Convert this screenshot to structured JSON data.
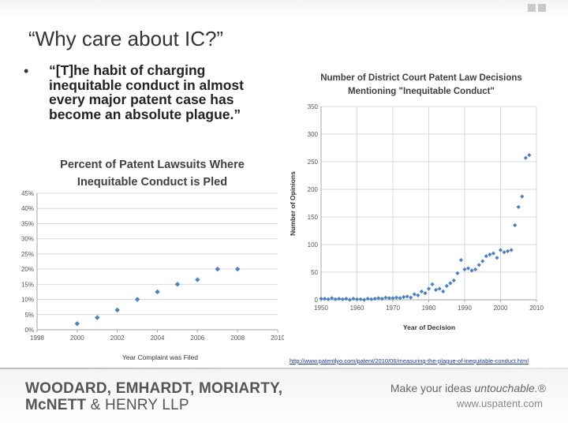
{
  "slide": {
    "title": "“Why care about IC?”",
    "bullet": "“[T]he habit of charging inequitable conduct in almost every major patent case has become an absolute plague.”",
    "bullet_marker": "•",
    "source_url": "http://www.patentlyo.com/patent/2010/06/measuring-the-plague-of-inequitable-conduct.html",
    "firm_line1": "WOODARD, EMHARDT, MORIARTY,",
    "firm_line2_a": "McNETT",
    "firm_line2_b": " & HENRY LLP",
    "tagline_a": "Make your ideas ",
    "tagline_b": "untouchable.®",
    "website": "www.uspatent.com",
    "colors": {
      "marker": "#4f81bd",
      "grid": "#d9d9d9",
      "accent": "#555555"
    }
  },
  "chart_data": [
    {
      "type": "scatter",
      "title": [
        "Percent of Patent Lawsuits Where",
        "Inequitable Conduct is Pled"
      ],
      "xlabel": "Year Complaint was Filed",
      "ylabel": "",
      "xlim": [
        1998,
        2010
      ],
      "ylim": [
        0,
        45
      ],
      "xticks": [
        1998,
        2000,
        2002,
        2004,
        2006,
        2008,
        2010
      ],
      "xtick_labels": [
        "1998",
        "2000",
        "2002",
        "2004",
        "2006",
        "2008",
        "2010"
      ],
      "yticks": [
        0,
        5,
        10,
        15,
        20,
        25,
        30,
        35,
        40,
        45
      ],
      "ytick_labels": [
        "0%",
        "5%",
        "10%",
        "15%",
        "20%",
        "25%",
        "30%",
        "35%",
        "40%",
        "45%"
      ],
      "grid": true,
      "x": [
        2000,
        2001,
        2002,
        2003,
        2004,
        2005,
        2006,
        2007,
        2008
      ],
      "y": [
        2,
        4,
        6.5,
        10,
        12.5,
        15,
        16.5,
        20,
        20
      ]
    },
    {
      "type": "scatter",
      "title": [
        "Number of District Court Patent Law Decisions",
        "Mentioning \"Inequitable Conduct\""
      ],
      "xlabel": "Year of Decision",
      "ylabel": "Number of Opinions",
      "xlim": [
        1950,
        2010
      ],
      "ylim": [
        0,
        350
      ],
      "xticks": [
        1950,
        1960,
        1970,
        1980,
        1990,
        2000,
        2010
      ],
      "xtick_labels": [
        "1950",
        "1960",
        "1970",
        "1980",
        "1990",
        "2000",
        "2010"
      ],
      "yticks": [
        0,
        50,
        100,
        150,
        200,
        250,
        300,
        350
      ],
      "ytick_labels": [
        "0",
        "50",
        "100",
        "150",
        "200",
        "250",
        "300",
        "350"
      ],
      "grid": true,
      "x": [
        1950,
        1951,
        1952,
        1953,
        1954,
        1955,
        1956,
        1957,
        1958,
        1959,
        1960,
        1961,
        1962,
        1963,
        1964,
        1965,
        1966,
        1967,
        1968,
        1969,
        1970,
        1971,
        1972,
        1973,
        1974,
        1975,
        1976,
        1977,
        1978,
        1979,
        1980,
        1981,
        1982,
        1983,
        1984,
        1985,
        1986,
        1987,
        1988,
        1989,
        1990,
        1991,
        1992,
        1993,
        1994,
        1995,
        1996,
        1997,
        1998,
        1999,
        2000,
        2001,
        2002,
        2003,
        2004,
        2005,
        2006,
        2007,
        2008
      ],
      "y": [
        2,
        2,
        1,
        3,
        1,
        2,
        1,
        2,
        0,
        2,
        1,
        1,
        0,
        2,
        1,
        2,
        3,
        2,
        4,
        3,
        3,
        4,
        3,
        5,
        6,
        4,
        10,
        8,
        15,
        12,
        20,
        28,
        18,
        20,
        15,
        25,
        30,
        35,
        48,
        72,
        55,
        57,
        53,
        55,
        63,
        70,
        79,
        82,
        84,
        76,
        90,
        86,
        88,
        90,
        135,
        168,
        187,
        257,
        262
      ]
    }
  ]
}
